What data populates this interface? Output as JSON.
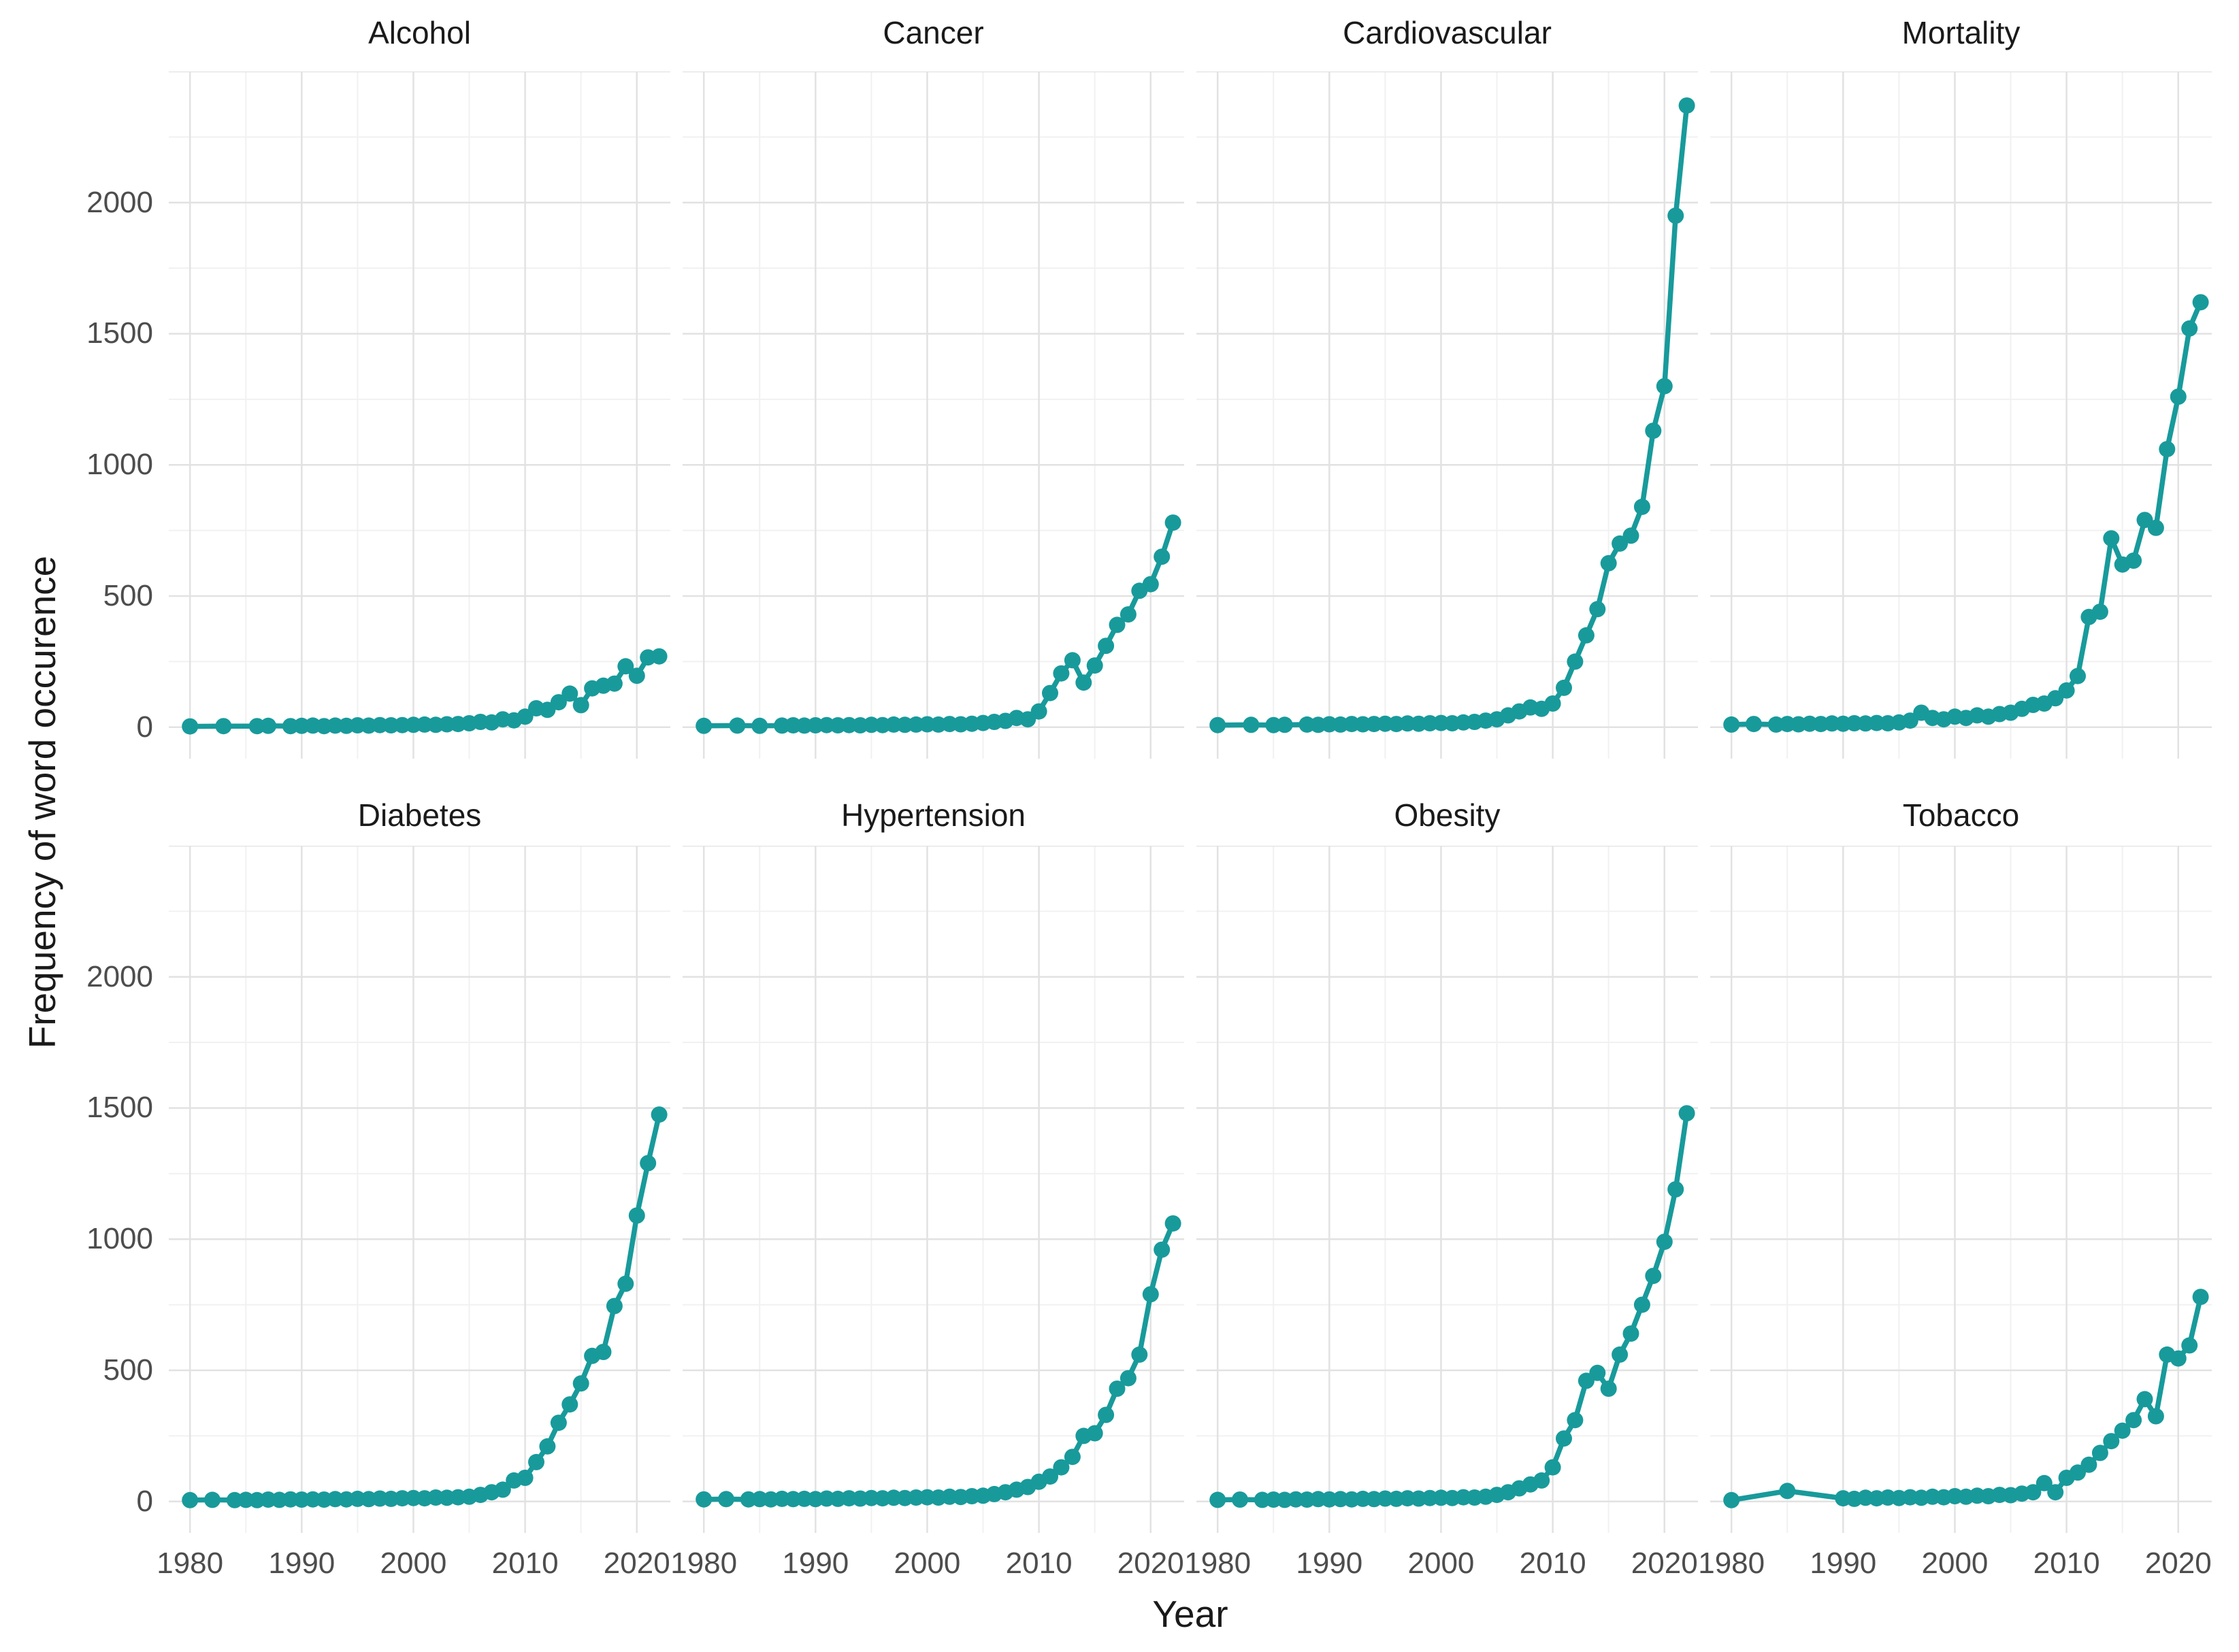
{
  "axis": {
    "x_label": "Year",
    "y_label": "Frequency of word occurence",
    "x_ticks": [
      "1980",
      "1990",
      "2000",
      "2010",
      "2020"
    ],
    "y_ticks": [
      "0",
      "500",
      "1000",
      "1500",
      "2000"
    ]
  },
  "style": {
    "line_color": "#189a9b",
    "grid_major_color": "#e2e2e2",
    "grid_minor_color": "#f1f1f1",
    "background": "#ffffff",
    "tick_text_color": "#4d4d4d",
    "title_text_color": "#1a1a1a"
  },
  "chart_data": {
    "type": "line",
    "faceted": true,
    "legend": "none",
    "grid": "on",
    "xlabel": "Year",
    "ylabel": "Frequency of word occurence",
    "x_tick_values": [
      1980,
      1990,
      2000,
      2010,
      2020
    ],
    "x_minor_values": [
      1985,
      1995,
      2005,
      2015
    ],
    "y_tick_values": [
      0,
      500,
      1000,
      1500,
      2000
    ],
    "y_major_values": [
      0,
      500,
      1000,
      1500,
      2000,
      2500
    ],
    "y_minor_values": [
      250,
      750,
      1250,
      1750,
      2250
    ],
    "xlim": [
      1978.1,
      2023.0
    ],
    "ylim": [
      -120,
      2500
    ],
    "years": [
      1980,
      1981,
      1982,
      1983,
      1984,
      1985,
      1986,
      1987,
      1988,
      1989,
      1990,
      1991,
      1992,
      1993,
      1994,
      1995,
      1996,
      1997,
      1998,
      1999,
      2000,
      2001,
      2002,
      2003,
      2004,
      2005,
      2006,
      2007,
      2008,
      2009,
      2010,
      2011,
      2012,
      2013,
      2014,
      2015,
      2016,
      2017,
      2018,
      2019,
      2020,
      2021,
      2022
    ],
    "series": [
      {
        "name": "Alcohol",
        "values": [
          3,
          null,
          null,
          4,
          null,
          null,
          4,
          5,
          null,
          4,
          5,
          6,
          4,
          6,
          5,
          7,
          6,
          8,
          7,
          8,
          9,
          10,
          9,
          11,
          12,
          15,
          20,
          18,
          30,
          26,
          40,
          72,
          66,
          95,
          128,
          84,
          148,
          158,
          166,
          232,
          196,
          266,
          270
        ]
      },
      {
        "name": "Cancer",
        "values": [
          5,
          null,
          null,
          6,
          null,
          5,
          null,
          6,
          7,
          6,
          7,
          8,
          7,
          8,
          7,
          9,
          8,
          10,
          9,
          10,
          11,
          10,
          12,
          11,
          13,
          16,
          20,
          24,
          35,
          30,
          60,
          130,
          205,
          255,
          170,
          235,
          310,
          390,
          430,
          520,
          545,
          650,
          780
        ]
      },
      {
        "name": "Cardiovascular",
        "values": [
          8,
          null,
          null,
          9,
          null,
          8,
          9,
          null,
          10,
          9,
          11,
          10,
          12,
          11,
          12,
          13,
          12,
          14,
          13,
          15,
          16,
          15,
          18,
          20,
          25,
          30,
          45,
          60,
          75,
          70,
          90,
          150,
          250,
          350,
          450,
          625,
          700,
          730,
          840,
          1130,
          1300,
          1950,
          2370
        ]
      },
      {
        "name": "Mortality",
        "values": [
          10,
          null,
          12,
          null,
          10,
          12,
          11,
          13,
          12,
          14,
          13,
          15,
          14,
          16,
          15,
          18,
          25,
          55,
          35,
          30,
          40,
          35,
          45,
          40,
          50,
          55,
          70,
          85,
          90,
          110,
          140,
          195,
          420,
          440,
          720,
          620,
          635,
          790,
          760,
          1060,
          1260,
          1520,
          1620
        ]
      },
      {
        "name": "Diabetes",
        "values": [
          5,
          null,
          6,
          null,
          5,
          6,
          5,
          7,
          6,
          8,
          7,
          8,
          7,
          9,
          8,
          10,
          9,
          11,
          10,
          12,
          13,
          12,
          15,
          14,
          16,
          18,
          25,
          35,
          45,
          80,
          90,
          150,
          210,
          300,
          370,
          450,
          555,
          570,
          745,
          830,
          1090,
          1290,
          1475
        ]
      },
      {
        "name": "Hypertension",
        "values": [
          8,
          null,
          9,
          null,
          8,
          9,
          8,
          10,
          9,
          10,
          9,
          11,
          10,
          12,
          11,
          13,
          12,
          14,
          13,
          15,
          16,
          15,
          18,
          17,
          20,
          22,
          28,
          35,
          45,
          55,
          75,
          95,
          130,
          170,
          250,
          260,
          330,
          430,
          470,
          560,
          790,
          960,
          1060
        ]
      },
      {
        "name": "Obesity",
        "values": [
          6,
          null,
          7,
          null,
          6,
          7,
          6,
          8,
          7,
          9,
          8,
          9,
          8,
          10,
          9,
          11,
          10,
          12,
          11,
          13,
          14,
          13,
          16,
          15,
          18,
          25,
          35,
          50,
          65,
          80,
          130,
          240,
          310,
          460,
          490,
          430,
          560,
          640,
          750,
          860,
          990,
          1190,
          1480
        ]
      },
      {
        "name": "Tobacco",
        "values": [
          5,
          null,
          null,
          null,
          null,
          40,
          null,
          null,
          null,
          null,
          12,
          10,
          14,
          12,
          15,
          13,
          16,
          14,
          18,
          16,
          20,
          18,
          22,
          20,
          25,
          24,
          30,
          35,
          70,
          35,
          90,
          110,
          140,
          185,
          230,
          270,
          310,
          390,
          325,
          560,
          545,
          595,
          780
        ]
      }
    ]
  }
}
